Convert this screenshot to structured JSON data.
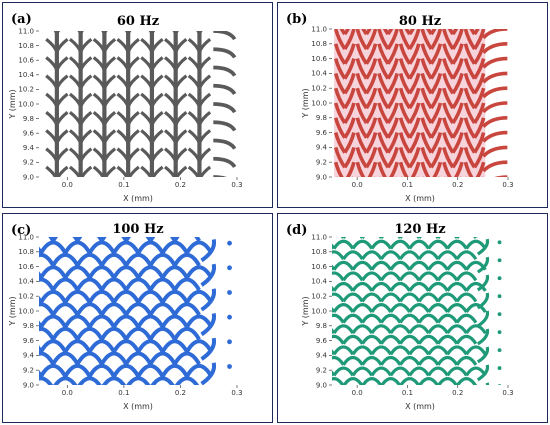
{
  "chart_data": [
    {
      "type": "scatter",
      "panel_label": "(a)",
      "title": "60 Hz",
      "xlabel": "X (mm)",
      "ylabel": "Y (mm)",
      "xlim": [
        -0.05,
        0.3
      ],
      "ylim": [
        9.0,
        11.0
      ],
      "xticks": [
        "0.0",
        "0.1",
        "0.2",
        "0.3"
      ],
      "yticks": [
        "9.0",
        "9.2",
        "9.4",
        "9.6",
        "9.8",
        "10.0",
        "10.2",
        "10.4",
        "10.6",
        "10.8",
        "11.0"
      ],
      "color": "#5a5a5a",
      "columns": 7,
      "rows": 8,
      "pattern": "vertical chevrons"
    },
    {
      "type": "scatter",
      "panel_label": "(b)",
      "title": "80 Hz",
      "xlabel": "X (mm)",
      "ylabel": "Y (mm)",
      "xlim": [
        -0.05,
        0.3
      ],
      "ylim": [
        9.0,
        11.0
      ],
      "xticks": [
        "0.0",
        "0.1",
        "0.2",
        "0.3"
      ],
      "yticks": [
        "9.0",
        "9.2",
        "9.4",
        "9.6",
        "9.8",
        "10.0",
        "10.2",
        "10.4",
        "10.6",
        "10.8",
        "11.0"
      ],
      "color": "#c8463e",
      "fill": "#f7d4dc",
      "columns": 7,
      "rows": 10,
      "pattern": "knit chevrons"
    },
    {
      "type": "scatter",
      "panel_label": "(c)",
      "title": "100 Hz",
      "xlabel": "X (mm)",
      "ylabel": "Y (mm)",
      "xlim": [
        -0.05,
        0.3
      ],
      "ylim": [
        9.0,
        11.0
      ],
      "xticks": [
        "0.0",
        "0.1",
        "0.2",
        "0.3"
      ],
      "yticks": [
        "9.0",
        "9.2",
        "9.4",
        "9.6",
        "9.8",
        "10.0",
        "10.2",
        "10.4",
        "10.6",
        "10.8",
        "11.0"
      ],
      "color": "#2e6bd6",
      "columns": 7,
      "rows": 12,
      "pattern": "fish scales"
    },
    {
      "type": "scatter",
      "panel_label": "(d)",
      "title": "120 Hz",
      "xlabel": "X (mm)",
      "ylabel": "Y (mm)",
      "xlim": [
        -0.05,
        0.3
      ],
      "ylim": [
        9.0,
        11.0
      ],
      "xticks": [
        "0.0",
        "0.1",
        "0.2",
        "0.3"
      ],
      "yticks": [
        "9.0",
        "9.2",
        "9.4",
        "9.6",
        "9.8",
        "10.0",
        "10.2",
        "10.4",
        "10.6",
        "10.8",
        "11.0"
      ],
      "color": "#1f9a78",
      "columns": 8,
      "rows": 14,
      "pattern": "dense arcs"
    }
  ]
}
